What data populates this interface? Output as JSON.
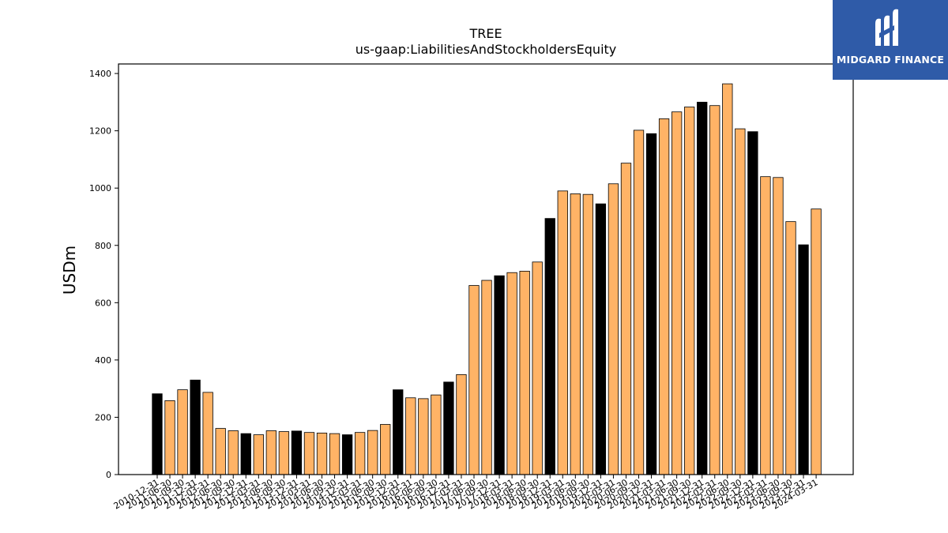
{
  "chart_data": {
    "type": "bar",
    "title": "TREE",
    "subtitle": "us-gaap:LiabilitiesAndStockholdersEquity",
    "ylabel": "USDm",
    "xlabel": "",
    "ylim": [
      0,
      1430
    ],
    "yticks": [
      0,
      200,
      400,
      600,
      800,
      1000,
      1200,
      1400
    ],
    "grid": false,
    "categories": [
      "2010-12-31",
      "2011-06-30",
      "2011-09-30",
      "2011-12-31",
      "2012-03-31",
      "2012-06-30",
      "2012-09-30",
      "2012-12-31",
      "2013-03-31",
      "2013-06-30",
      "2013-09-30",
      "2013-12-31",
      "2014-03-31",
      "2014-06-30",
      "2014-09-30",
      "2014-12-31",
      "2015-03-31",
      "2015-06-30",
      "2015-09-30",
      "2015-12-31",
      "2016-03-31",
      "2016-06-30",
      "2016-09-30",
      "2016-12-31",
      "2017-03-31",
      "2017-06-30",
      "2017-09-30",
      "2017-12-31",
      "2018-03-31",
      "2018-06-30",
      "2018-09-30",
      "2018-12-31",
      "2019-03-31",
      "2019-06-30",
      "2019-09-30",
      "2019-12-31",
      "2020-03-31",
      "2020-06-30",
      "2020-09-30",
      "2020-12-31",
      "2021-03-31",
      "2021-06-30",
      "2021-09-30",
      "2021-12-31",
      "2022-03-31",
      "2022-06-30",
      "2022-09-30",
      "2022-12-31",
      "2023-03-31",
      "2023-06-30",
      "2023-09-30",
      "2023-12-31",
      "2024-03-31"
    ],
    "values": [
      282,
      258,
      296,
      330,
      287,
      161,
      153,
      143,
      139,
      153,
      150,
      152,
      147,
      145,
      143,
      139,
      147,
      154,
      175,
      296,
      268,
      265,
      278,
      323,
      349,
      660,
      678,
      694,
      705,
      710,
      742,
      894,
      990,
      980,
      978,
      945,
      1015,
      1087,
      1202,
      1190,
      1242,
      1266,
      1283,
      1300,
      1288,
      1364,
      1207,
      1197,
      1040,
      1037,
      883,
      802,
      927
    ],
    "highlight_color": "#000000",
    "bar_color": "#ffb366",
    "highlight_rule": "year-end (12-31) bars are black",
    "legend": "none"
  },
  "logo": {
    "text": "MIDGARD FINANCE",
    "color": "#2f5ba8"
  }
}
